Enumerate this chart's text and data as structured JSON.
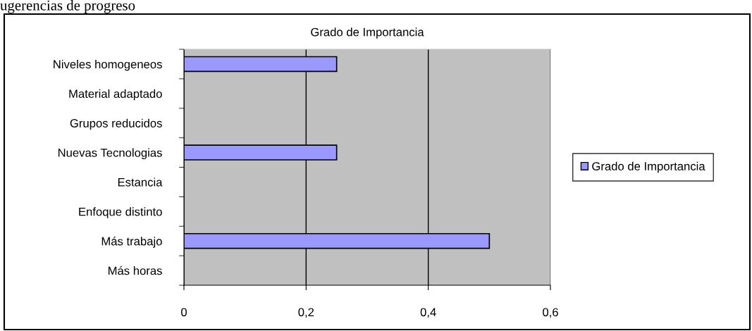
{
  "chart_data": {
    "type": "bar",
    "orientation": "horizontal",
    "title": "Grado de Importancia",
    "categories": [
      "Niveles homogeneos",
      "Material adaptado",
      "Grupos reducidos",
      "Nuevas Tecnologias",
      "Estancia",
      "Enfoque distinto",
      "Más trabajo",
      "Más horas"
    ],
    "series": [
      {
        "name": "Grado de Importancia",
        "color": "#9999ff",
        "values": [
          0.25,
          0,
          0,
          0.25,
          0,
          0,
          0.5,
          0
        ]
      }
    ],
    "xlim": [
      0,
      0.6
    ],
    "xticks": [
      0,
      {
        "value": 0.2,
        "label": "0,2"
      },
      {
        "value": 0.4,
        "label": "0,4"
      },
      {
        "value": 0.6,
        "label": "0,6"
      }
    ],
    "grid": "x",
    "legend": "right",
    "annotations": [
      "ugerencias de progreso"
    ]
  }
}
